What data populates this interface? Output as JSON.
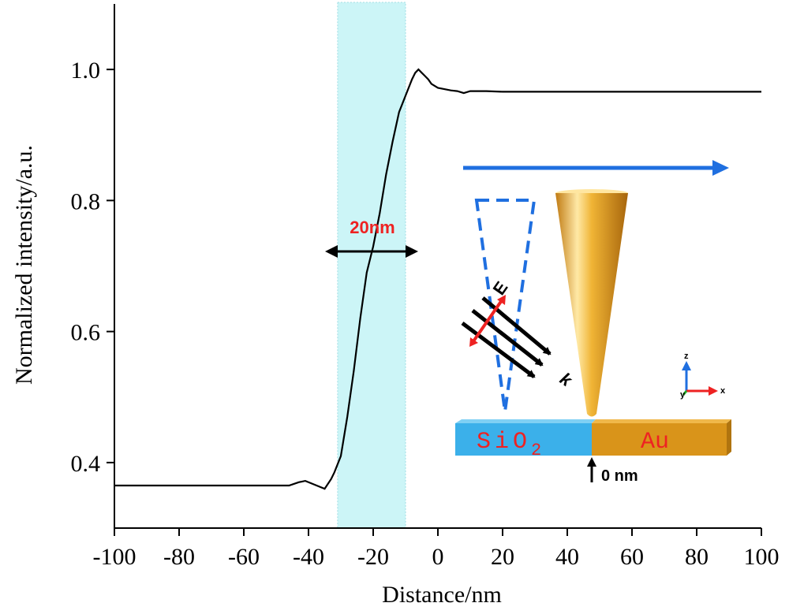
{
  "chart_data": {
    "type": "line",
    "xlabel": "Distance/nm",
    "ylabel": "Normalized intensity/a.u.",
    "xlim": [
      -100,
      100
    ],
    "ylim": [
      0.3,
      1.1
    ],
    "x_ticks": [
      -100,
      -80,
      -60,
      -40,
      -20,
      0,
      20,
      40,
      60,
      80,
      100
    ],
    "x_tick_labels": [
      "-100",
      "-80",
      "-60",
      "-40",
      "-20",
      "0",
      "20",
      "40",
      "60",
      "80",
      "100"
    ],
    "y_ticks": [
      0.4,
      0.6,
      0.8,
      1.0
    ],
    "y_tick_labels": [
      "0.4",
      "0.6",
      "0.8",
      "1.0"
    ],
    "grid": false,
    "highlight_band": {
      "x_start": -31,
      "x_end": -10,
      "color": "#ccf5f7"
    },
    "series": [
      {
        "color": "#000000",
        "x": [
          -100,
          -90,
          -80,
          -70,
          -60,
          -50,
          -46,
          -43,
          -41,
          -38,
          -35,
          -33,
          -32,
          -30,
          -28,
          -26,
          -24,
          -22,
          -20,
          -18,
          -16,
          -14,
          -12,
          -10,
          -8,
          -7,
          -6,
          -5,
          -4,
          -3,
          -2,
          0,
          2,
          4,
          6,
          8,
          10,
          15,
          20,
          25,
          30,
          35,
          40,
          60,
          80,
          100
        ],
        "y": [
          0.365,
          0.365,
          0.365,
          0.365,
          0.365,
          0.365,
          0.365,
          0.37,
          0.372,
          0.366,
          0.36,
          0.375,
          0.385,
          0.41,
          0.47,
          0.54,
          0.62,
          0.69,
          0.73,
          0.78,
          0.84,
          0.89,
          0.935,
          0.96,
          0.985,
          0.995,
          1.0,
          0.995,
          0.99,
          0.985,
          0.978,
          0.972,
          0.97,
          0.968,
          0.967,
          0.964,
          0.967,
          0.967,
          0.966,
          0.966,
          0.966,
          0.966,
          0.966,
          0.966,
          0.966,
          0.966
        ]
      }
    ],
    "annotations": {
      "width_label": "20nm",
      "materials": {
        "left": "SiO",
        "left_subscript": "2",
        "right": "Au"
      },
      "zero_marker": "0 nm",
      "field_label": "E",
      "wavevector_label": "k",
      "axis_triad": {
        "z": "z",
        "y": "y",
        "x": "x"
      }
    }
  },
  "colors": {
    "curve": "#000000",
    "band": "#ccf5f7",
    "scan_arrow": "#1f6fe0",
    "dashed_triangle": "#1f6fe0",
    "sio2": "#3bb0ea",
    "au": "#d9941a",
    "label_red": "#ee2222",
    "tip_gold": "#e0a12a"
  }
}
